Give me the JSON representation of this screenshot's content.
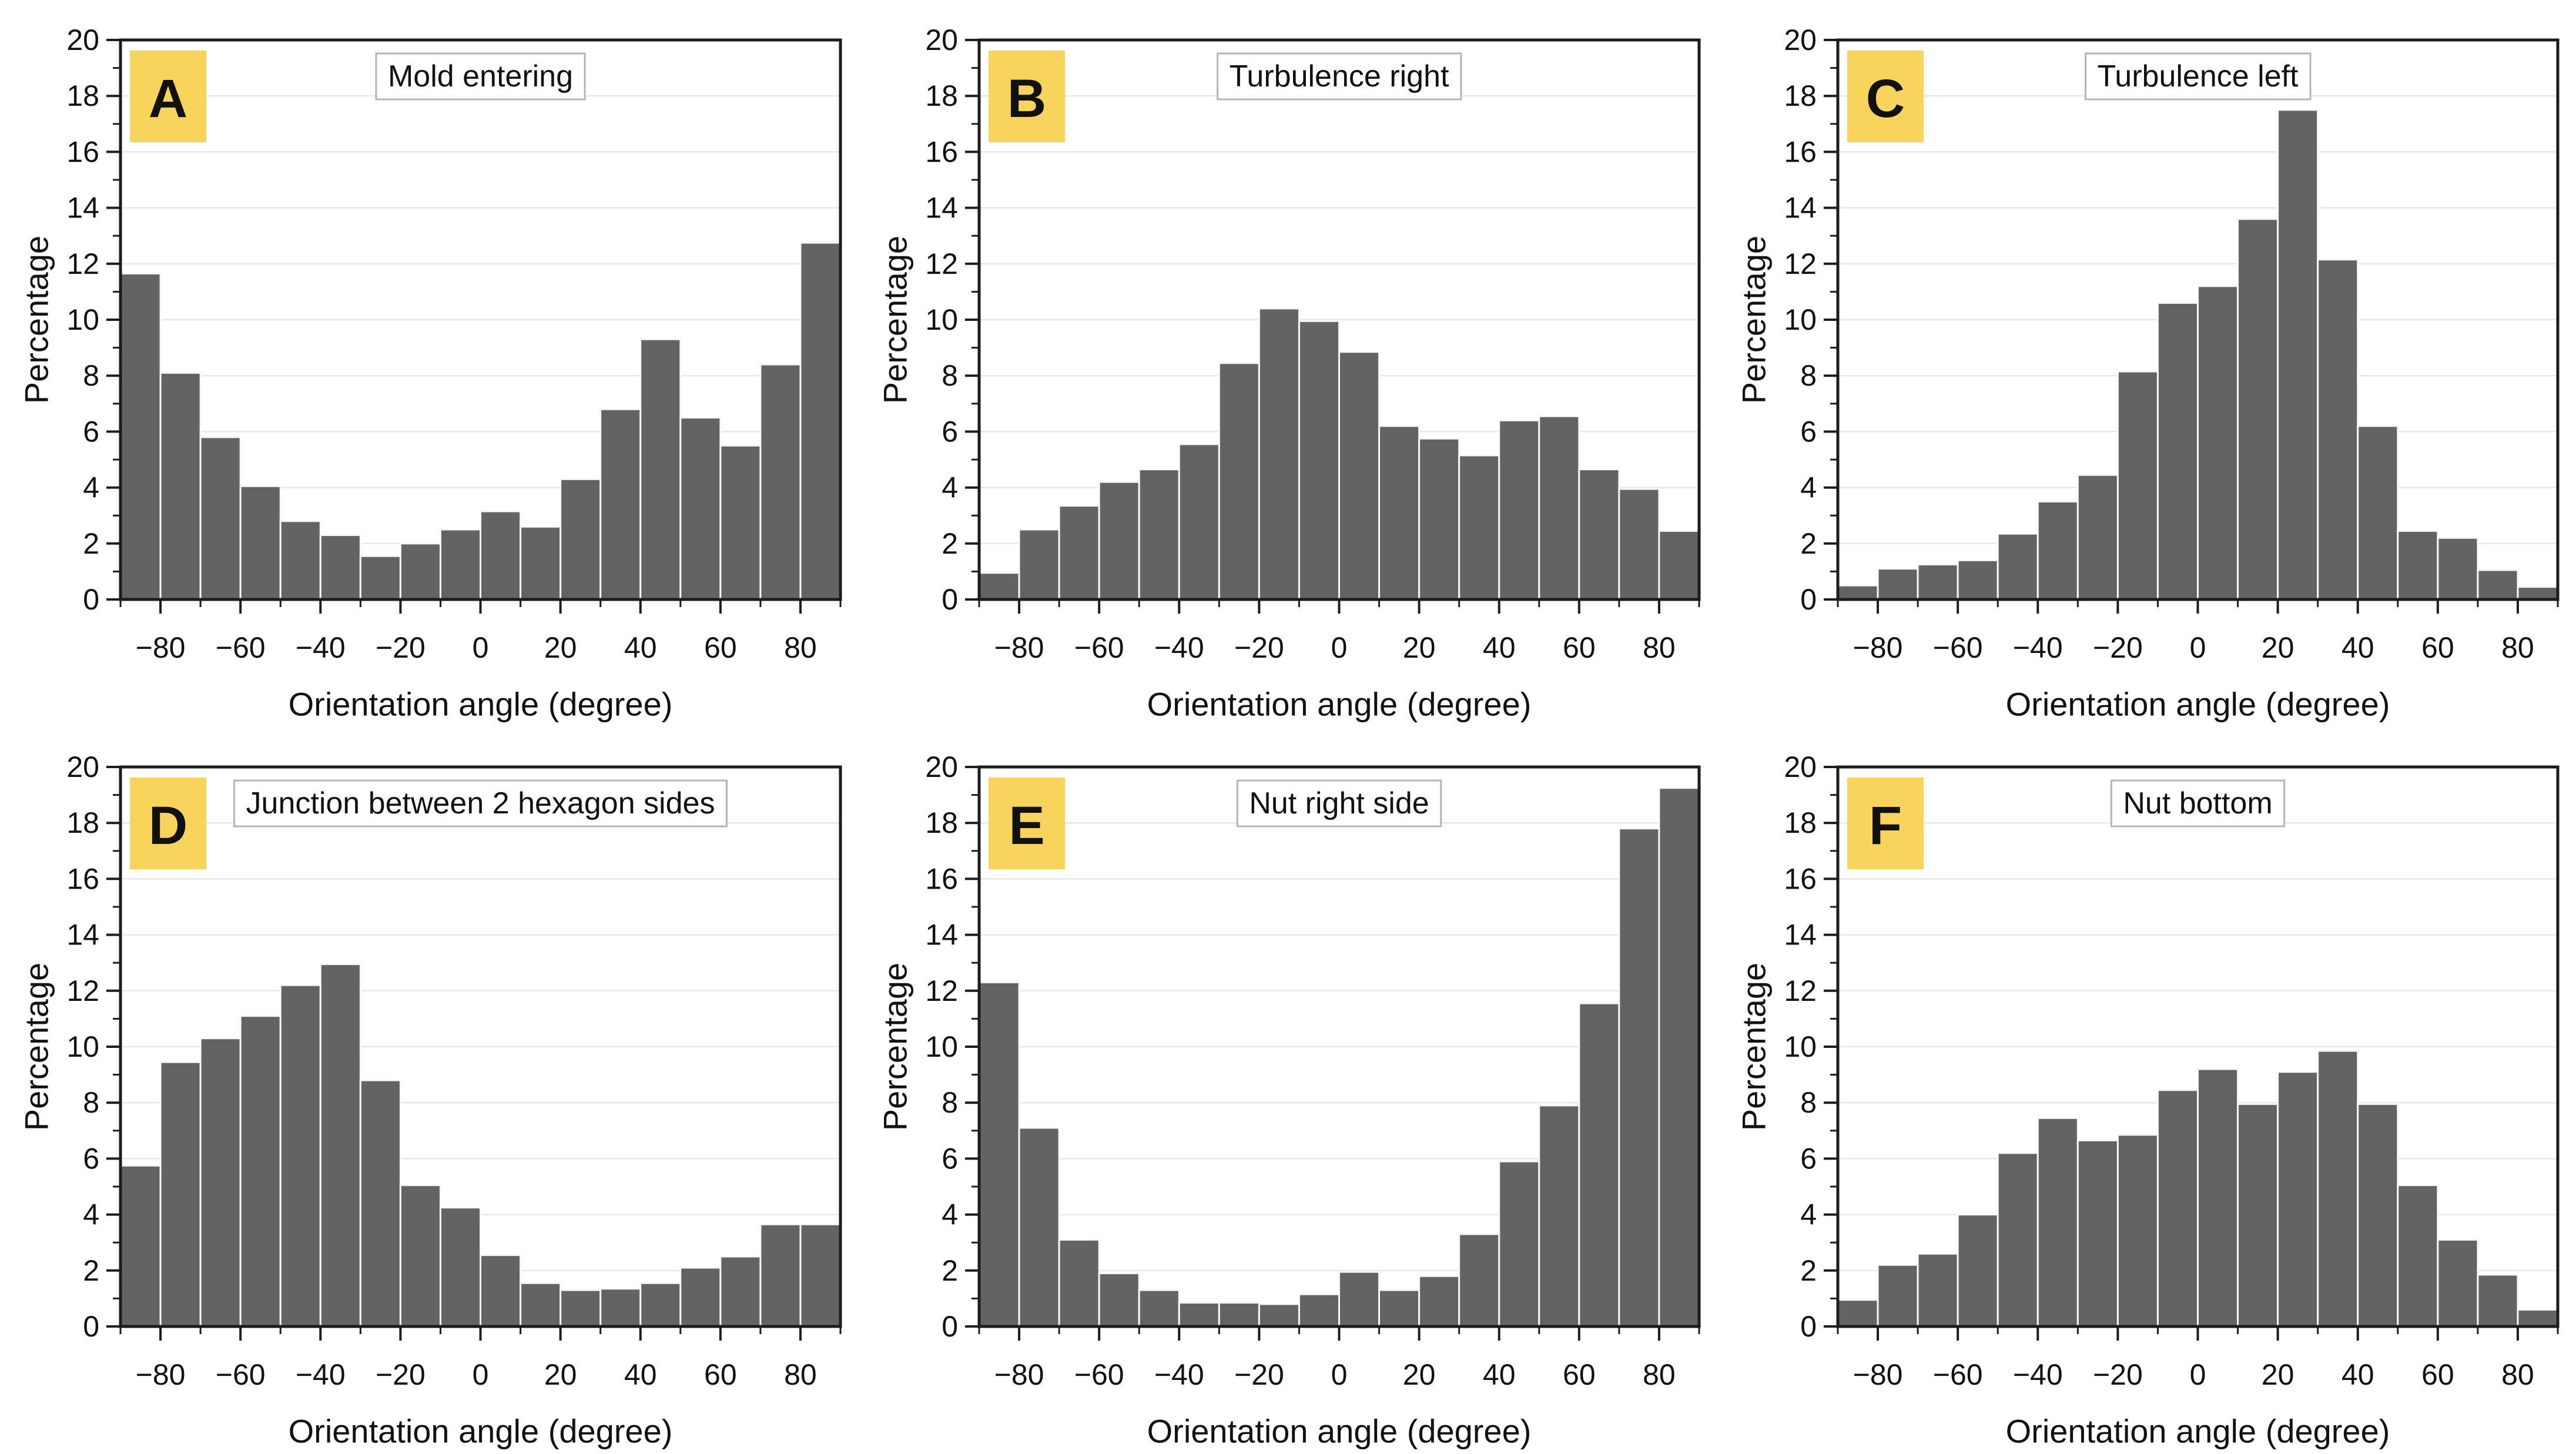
{
  "figure": {
    "background": "#ffffff",
    "bar_color": "#636363",
    "bar_separator_color": "#f7f7f7",
    "frame_color": "#1c1c1c",
    "gridline_color": "#e8e8e8",
    "panel_label_bg": "#f9d45c",
    "panel_label_color": "#111111",
    "title_box_border": "#b5b5b5",
    "title_box_bg": "#ffffff",
    "text_color": "#111111"
  },
  "chart_data": {
    "type": "bar",
    "xlabel": "Orientation angle (degree)",
    "ylabel": "Percentage",
    "xlim": [
      -90,
      90
    ],
    "ylim": [
      0,
      20
    ],
    "bin_width_degrees": 10,
    "bin_start_degrees": -90,
    "grid": "horizontal-major",
    "ytick_major_step": 2,
    "ytick_minor_step": 1,
    "xtick_major_step": 20,
    "xtick_minor_step": 10,
    "ytick_labels": [
      "0",
      "2",
      "4",
      "6",
      "8",
      "10",
      "12",
      "14",
      "16",
      "18",
      "20"
    ],
    "ytick_values": [
      0,
      2,
      4,
      6,
      8,
      10,
      12,
      14,
      16,
      18,
      20
    ],
    "xtick_labels": [
      "−80",
      "−60",
      "−40",
      "−20",
      "0",
      "20",
      "40",
      "60",
      "80"
    ],
    "xtick_values": [
      -80,
      -60,
      -40,
      -20,
      0,
      20,
      40,
      60,
      80
    ],
    "panels": [
      {
        "label": "A",
        "title": "Mold entering",
        "values": [
          11.65,
          8.1,
          5.8,
          4.05,
          2.8,
          2.3,
          1.55,
          2.0,
          2.5,
          3.15,
          2.6,
          4.3,
          6.8,
          9.3,
          6.5,
          5.5,
          8.4,
          12.75
        ]
      },
      {
        "label": "B",
        "title": "Turbulence right",
        "values": [
          0.95,
          2.5,
          3.35,
          4.2,
          4.65,
          5.55,
          8.45,
          10.4,
          9.95,
          8.85,
          6.2,
          5.75,
          5.15,
          6.4,
          6.55,
          4.65,
          3.95,
          2.45
        ]
      },
      {
        "label": "C",
        "title": "Turbulence left",
        "values": [
          0.5,
          1.1,
          1.25,
          1.4,
          2.35,
          3.5,
          4.45,
          8.15,
          10.6,
          11.2,
          13.6,
          17.5,
          12.15,
          6.2,
          2.45,
          2.2,
          1.05,
          0.45
        ]
      },
      {
        "label": "D",
        "title": "Junction between 2 hexagon sides",
        "values": [
          5.75,
          9.45,
          10.3,
          11.1,
          12.2,
          12.95,
          8.8,
          5.05,
          4.25,
          2.55,
          1.55,
          1.3,
          1.35,
          1.55,
          2.1,
          2.5,
          3.65,
          3.65
        ]
      },
      {
        "label": "E",
        "title": "Nut right side",
        "values": [
          12.3,
          7.1,
          3.1,
          1.9,
          1.3,
          0.85,
          0.85,
          0.8,
          1.15,
          1.95,
          1.3,
          1.8,
          3.3,
          5.9,
          7.9,
          11.55,
          17.8,
          19.25
        ]
      },
      {
        "label": "F",
        "title": "Nut bottom",
        "values": [
          0.95,
          2.2,
          2.6,
          4.0,
          6.2,
          7.45,
          6.65,
          6.85,
          8.45,
          9.2,
          7.95,
          9.1,
          9.85,
          7.95,
          5.05,
          3.1,
          1.85,
          0.6
        ]
      }
    ]
  }
}
